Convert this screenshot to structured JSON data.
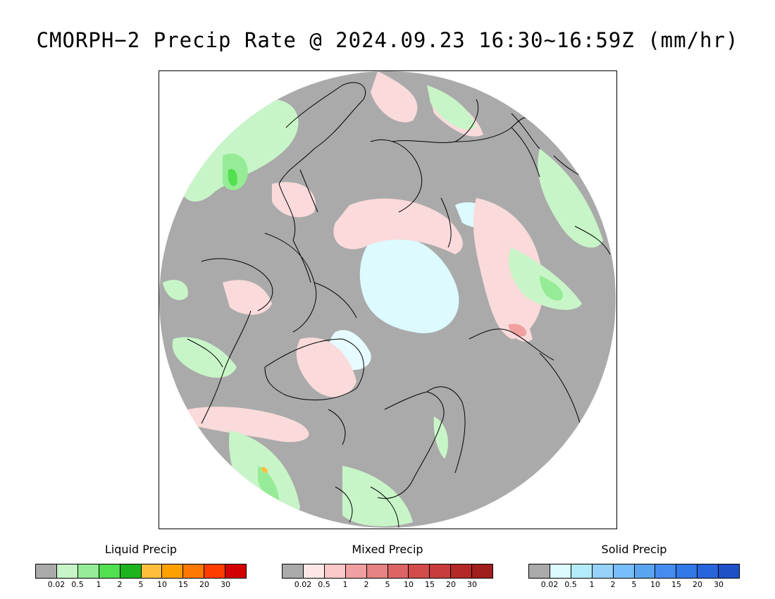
{
  "title": "CMORPH−2 Precip Rate @ 2024.09.23 16:30~16:59Z (mm/hr)",
  "map": {
    "projection": "polar stereographic, north pole",
    "background_color": "#aaaaaa",
    "land_outline_color": "#000000"
  },
  "legends": [
    {
      "name": "liquid",
      "title": "Liquid Precip",
      "colors": [
        "#aaaaaa",
        "#c8f5c8",
        "#96ec96",
        "#50e050",
        "#1eb41e",
        "#ffbe3c",
        "#ffa000",
        "#ff7800",
        "#ff3c00",
        "#d20000"
      ],
      "ticks": [
        "0.02",
        "0.5",
        "1",
        "2",
        "5",
        "10",
        "15",
        "20",
        "30"
      ]
    },
    {
      "name": "mixed",
      "title": "Mixed Precip",
      "colors": [
        "#aaaaaa",
        "#ffe6e6",
        "#fac8c8",
        "#f0a0a0",
        "#e68282",
        "#dc6464",
        "#d24b4b",
        "#c83c3c",
        "#b42828",
        "#a01e1e"
      ],
      "ticks": [
        "0.02",
        "0.5",
        "1",
        "2",
        "5",
        "10",
        "15",
        "20",
        "30"
      ]
    },
    {
      "name": "solid",
      "title": "Solid Precip",
      "colors": [
        "#aaaaaa",
        "#dcfaff",
        "#b4ebfa",
        "#96d2fa",
        "#78befa",
        "#5aa5f0",
        "#468cf0",
        "#3278e6",
        "#2864dc",
        "#1e50c8"
      ],
      "ticks": [
        "0.02",
        "0.5",
        "1",
        "2",
        "5",
        "10",
        "15",
        "20",
        "30"
      ]
    }
  ]
}
